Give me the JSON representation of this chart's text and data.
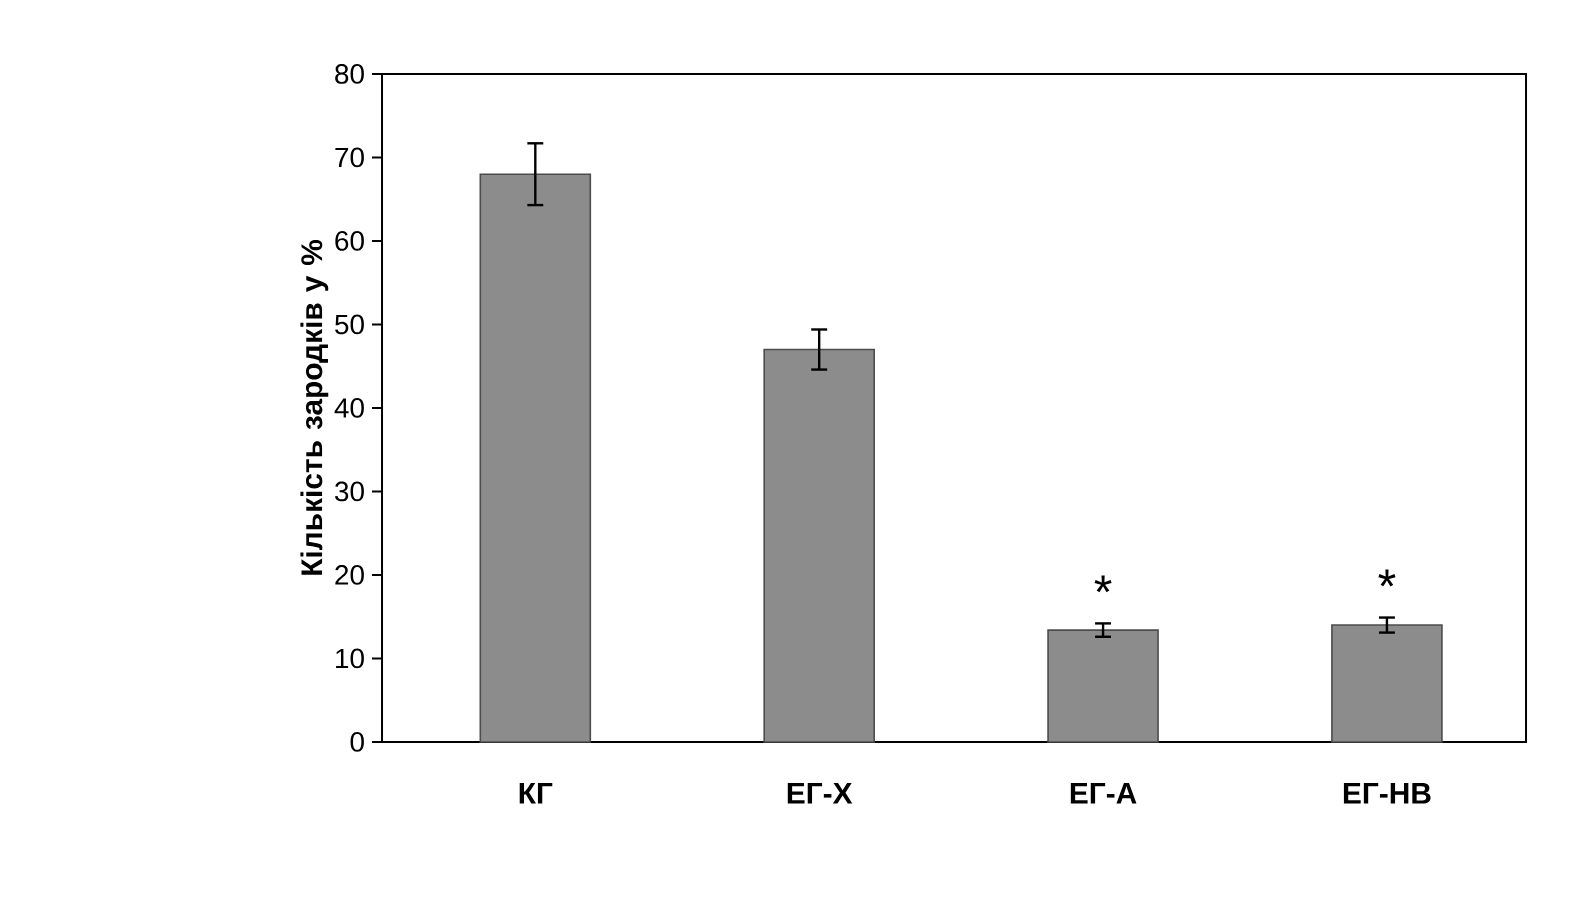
{
  "chart_data": {
    "type": "bar",
    "ylabel": "Кількість зародків у %",
    "categories": [
      "КГ",
      "ЕГ-Х",
      "ЕГ-А",
      "ЕГ-НВ"
    ],
    "values": [
      68,
      47,
      13.4,
      14
    ],
    "errors": [
      3.7,
      2.4,
      0.8,
      0.9
    ],
    "color": "#8c8c8c",
    "ylim": [
      0,
      80
    ],
    "yticks": [
      0,
      10,
      20,
      30,
      40,
      50,
      60,
      70,
      80
    ],
    "annotations": [
      "*",
      "*"
    ]
  }
}
